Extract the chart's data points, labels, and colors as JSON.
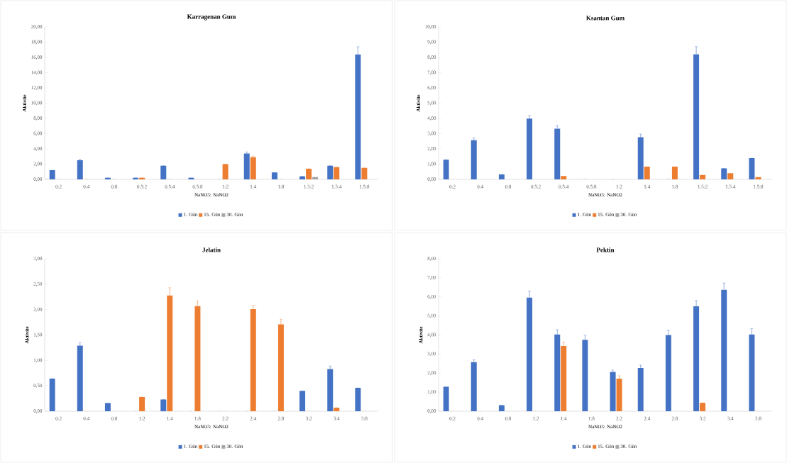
{
  "chart_data": [
    {
      "type": "bar",
      "title": "Karragenan Gum",
      "xlabel": "NaNO3: NaNO2",
      "ylabel": "Aktivite",
      "legend": "bottom",
      "categories": [
        "0:2",
        "0:4",
        "0:8",
        "0.5:2",
        "0.5:4",
        "0.5:8",
        "1:2",
        "1:4",
        "1:8",
        "1.5:2",
        "1.5:4",
        "1.5:8"
      ],
      "ylim": [
        0,
        20
      ],
      "yticks": [
        {
          "value": 0,
          "label": "0,00"
        },
        {
          "value": 2,
          "label": "2,00"
        },
        {
          "value": 4,
          "label": "4,00"
        },
        {
          "value": 6,
          "label": "6,00"
        },
        {
          "value": 8,
          "label": "8,00"
        },
        {
          "value": 10,
          "label": "10,00"
        },
        {
          "value": 12,
          "label": "12,00"
        },
        {
          "value": 14,
          "label": "14,00"
        },
        {
          "value": 16,
          "label": "16,00"
        },
        {
          "value": 18,
          "label": "18,00"
        },
        {
          "value": 20,
          "label": "20,00"
        }
      ],
      "series": [
        {
          "name": "1. Gün",
          "color": "#4472c4",
          "values": [
            1.2,
            2.5,
            0.2,
            0.2,
            1.8,
            0.2,
            0,
            3.4,
            0.9,
            0.4,
            1.8,
            16.4
          ],
          "errors": [
            null,
            0.15,
            null,
            null,
            null,
            null,
            null,
            0.2,
            null,
            null,
            null,
            1.0
          ]
        },
        {
          "name": "15. Gün",
          "color": "#ed7d31",
          "values": [
            0,
            0,
            0,
            0.2,
            0,
            0,
            2.0,
            2.9,
            0,
            1.4,
            1.6,
            1.5
          ],
          "errors": [
            null,
            null,
            null,
            null,
            null,
            null,
            null,
            0.15,
            null,
            null,
            null,
            null
          ]
        },
        {
          "name": "30. Gün",
          "color": "#a5a5a5",
          "values": [
            0,
            0,
            0,
            0,
            0,
            0,
            0,
            0,
            0,
            0.3,
            0,
            0
          ]
        }
      ]
    },
    {
      "type": "bar",
      "title": "Ksantan Gum",
      "xlabel": "NaNO3: NaNO2",
      "ylabel": "Aktivite",
      "legend": "bottom",
      "categories": [
        "0:2",
        "0:4",
        "0:8",
        "0.5:2",
        "0.5:4",
        "0.5:8",
        "1:2",
        "1:4",
        "1:8",
        "1.5:2",
        "1.5:4",
        "1.5:8"
      ],
      "ylim": [
        0,
        10
      ],
      "yticks": [
        {
          "value": 0,
          "label": "0,00"
        },
        {
          "value": 1,
          "label": "1,00"
        },
        {
          "value": 2,
          "label": "2,00"
        },
        {
          "value": 3,
          "label": "3,00"
        },
        {
          "value": 4,
          "label": "4,00"
        },
        {
          "value": 5,
          "label": "5,00"
        },
        {
          "value": 6,
          "label": "6,00"
        },
        {
          "value": 7,
          "label": "7,00"
        },
        {
          "value": 8,
          "label": "8,00"
        },
        {
          "value": 9,
          "label": "9,00"
        },
        {
          "value": 10,
          "label": "10,00"
        }
      ],
      "series": [
        {
          "name": "1. Gün",
          "color": "#4472c4",
          "values": [
            1.29,
            2.57,
            0.32,
            3.99,
            3.33,
            0,
            0,
            2.77,
            0,
            8.21,
            0.72,
            1.39
          ],
          "errors": [
            null,
            0.15,
            null,
            0.2,
            0.2,
            null,
            null,
            0.2,
            null,
            0.5,
            null,
            null
          ]
        },
        {
          "name": "15. Gün",
          "color": "#ed7d31",
          "values": [
            0,
            0,
            0,
            0,
            0.22,
            0,
            0,
            0.84,
            0.84,
            0.29,
            0.41,
            0.15
          ]
        },
        {
          "name": "30. Gün",
          "color": "#a5a5a5",
          "values": [
            0,
            0,
            0,
            0,
            0,
            0,
            0,
            0,
            0,
            0,
            0,
            0
          ]
        }
      ]
    },
    {
      "type": "bar",
      "title": "Jelatin",
      "xlabel": "NaNO3: NaNO2",
      "ylabel": "Aktivite",
      "legend": "bottom",
      "categories": [
        "0:2",
        "0:4",
        "0:8",
        "1:2",
        "1:4",
        "1:8",
        "2:2",
        "2:4",
        "2:8",
        "3:2",
        "3:4",
        "3:8"
      ],
      "ylim": [
        0,
        3
      ],
      "yticks": [
        {
          "value": 0,
          "label": "0,00"
        },
        {
          "value": 0.5,
          "label": "0,50"
        },
        {
          "value": 1,
          "label": "1,00"
        },
        {
          "value": 1.5,
          "label": "1,50"
        },
        {
          "value": 2,
          "label": "2,00"
        },
        {
          "value": 2.5,
          "label": "2,50"
        },
        {
          "value": 3,
          "label": "3,00"
        }
      ],
      "series": [
        {
          "name": "1. Gün",
          "color": "#4472c4",
          "values": [
            0.64,
            1.29,
            0.16,
            0,
            0.23,
            0,
            0,
            0,
            0,
            0.4,
            0.83,
            0.46
          ],
          "errors": [
            null,
            0.06,
            null,
            null,
            null,
            null,
            null,
            null,
            null,
            null,
            0.06,
            null
          ]
        },
        {
          "name": "15. Gün",
          "color": "#ed7d31",
          "values": [
            0,
            0,
            0,
            0.28,
            2.28,
            2.07,
            0,
            2.01,
            1.71,
            0,
            0.07,
            0
          ],
          "errors": [
            null,
            null,
            null,
            null,
            0.15,
            0.1,
            null,
            0.07,
            0.1,
            null,
            null,
            null
          ]
        },
        {
          "name": "30. Gün",
          "color": "#a5a5a5",
          "values": [
            0,
            0,
            0,
            0,
            0,
            0,
            0,
            0,
            0,
            0,
            0,
            0
          ]
        }
      ]
    },
    {
      "type": "bar",
      "title": "Pektin",
      "xlabel": "NaNO3: NaNO2",
      "ylabel": "Aktivite",
      "legend": "bottom",
      "categories": [
        "0:2",
        "0:4",
        "0:8",
        "1:2",
        "1:4",
        "1:8",
        "2:2",
        "2:4",
        "2:8",
        "3:2",
        "3:4",
        "3:8"
      ],
      "ylim": [
        0,
        8
      ],
      "yticks": [
        {
          "value": 0,
          "label": "0,00"
        },
        {
          "value": 1,
          "label": "1,00"
        },
        {
          "value": 2,
          "label": "2,00"
        },
        {
          "value": 3,
          "label": "3,00"
        },
        {
          "value": 4,
          "label": "4,00"
        },
        {
          "value": 5,
          "label": "5,00"
        },
        {
          "value": 6,
          "label": "6,00"
        },
        {
          "value": 7,
          "label": "7,00"
        },
        {
          "value": 8,
          "label": "8,00"
        }
      ],
      "series": [
        {
          "name": "1. Gün",
          "color": "#4472c4",
          "values": [
            1.28,
            2.58,
            0.32,
            5.96,
            4.03,
            3.75,
            2.06,
            2.27,
            4.0,
            5.51,
            6.38,
            4.03
          ],
          "errors": [
            null,
            0.12,
            null,
            0.35,
            0.25,
            0.25,
            0.1,
            0.15,
            0.25,
            0.3,
            0.35,
            0.3
          ]
        },
        {
          "name": "15. Gün",
          "color": "#ed7d31",
          "values": [
            0,
            0,
            0,
            0,
            3.43,
            0,
            1.71,
            0,
            0,
            0.44,
            0,
            0
          ],
          "errors": [
            null,
            null,
            null,
            null,
            0.2,
            null,
            0.15,
            null,
            null,
            null,
            null,
            null
          ]
        },
        {
          "name": "30. Gün",
          "color": "#a5a5a5",
          "values": [
            0,
            0,
            0,
            0,
            0,
            0,
            0,
            0,
            0,
            0,
            0,
            0
          ]
        }
      ]
    }
  ]
}
